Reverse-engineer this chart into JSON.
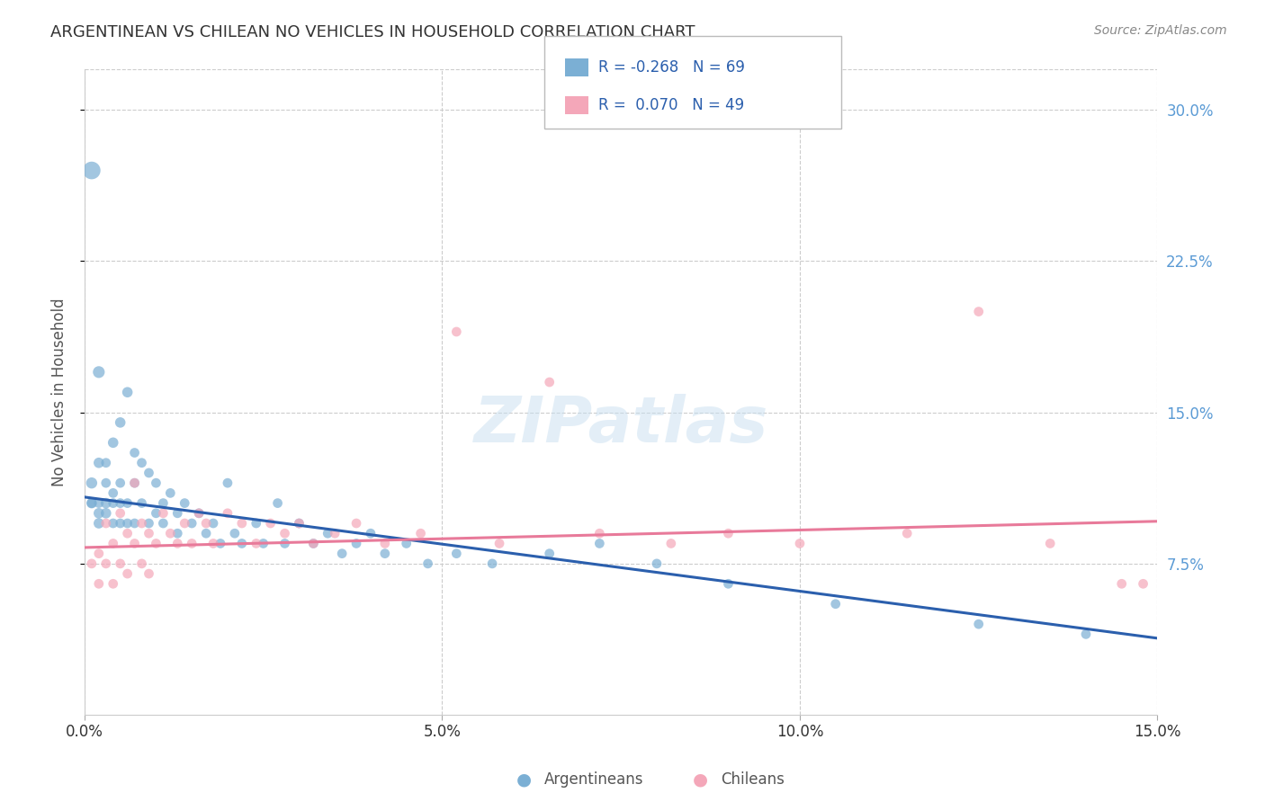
{
  "title": "ARGENTINEAN VS CHILEAN NO VEHICLES IN HOUSEHOLD CORRELATION CHART",
  "source": "Source: ZipAtlas.com",
  "ylabel": "No Vehicles in Household",
  "xlim": [
    0.0,
    0.15
  ],
  "ylim": [
    0.0,
    0.32
  ],
  "xticks": [
    0.0,
    0.05,
    0.1,
    0.15
  ],
  "xtick_labels": [
    "0.0%",
    "5.0%",
    "10.0%",
    "15.0%"
  ],
  "yticks": [
    0.075,
    0.15,
    0.225,
    0.3
  ],
  "ytick_labels": [
    "7.5%",
    "15.0%",
    "22.5%",
    "30.0%"
  ],
  "watermark": "ZIPatlas",
  "blue_color": "#7bafd4",
  "pink_color": "#f4a7b9",
  "blue_line_color": "#2b5fad",
  "pink_line_color": "#e87a9a",
  "blue_label": "Argentineans",
  "pink_label": "Chileans",
  "R_blue": "-0.268",
  "N_blue": "69",
  "R_pink": "0.070",
  "N_pink": "49",
  "blue_line": [
    0.0,
    0.108,
    0.15,
    0.038
  ],
  "pink_line": [
    0.0,
    0.083,
    0.15,
    0.096
  ],
  "argentinean_x": [
    0.001,
    0.001,
    0.001,
    0.001,
    0.002,
    0.002,
    0.002,
    0.002,
    0.002,
    0.003,
    0.003,
    0.003,
    0.003,
    0.004,
    0.004,
    0.004,
    0.004,
    0.005,
    0.005,
    0.005,
    0.005,
    0.006,
    0.006,
    0.006,
    0.007,
    0.007,
    0.007,
    0.008,
    0.008,
    0.009,
    0.009,
    0.01,
    0.01,
    0.011,
    0.011,
    0.012,
    0.013,
    0.013,
    0.014,
    0.015,
    0.016,
    0.017,
    0.018,
    0.019,
    0.02,
    0.021,
    0.022,
    0.024,
    0.025,
    0.027,
    0.028,
    0.03,
    0.032,
    0.034,
    0.036,
    0.038,
    0.04,
    0.042,
    0.045,
    0.048,
    0.052,
    0.057,
    0.065,
    0.072,
    0.08,
    0.09,
    0.105,
    0.125,
    0.14
  ],
  "argentinean_y": [
    0.27,
    0.115,
    0.105,
    0.105,
    0.17,
    0.125,
    0.105,
    0.1,
    0.095,
    0.105,
    0.1,
    0.125,
    0.115,
    0.135,
    0.11,
    0.105,
    0.095,
    0.145,
    0.115,
    0.105,
    0.095,
    0.16,
    0.105,
    0.095,
    0.13,
    0.115,
    0.095,
    0.125,
    0.105,
    0.12,
    0.095,
    0.115,
    0.1,
    0.105,
    0.095,
    0.11,
    0.1,
    0.09,
    0.105,
    0.095,
    0.1,
    0.09,
    0.095,
    0.085,
    0.115,
    0.09,
    0.085,
    0.095,
    0.085,
    0.105,
    0.085,
    0.095,
    0.085,
    0.09,
    0.08,
    0.085,
    0.09,
    0.08,
    0.085,
    0.075,
    0.08,
    0.075,
    0.08,
    0.085,
    0.075,
    0.065,
    0.055,
    0.045,
    0.04
  ],
  "argentinean_sizes": [
    200,
    80,
    70,
    60,
    90,
    70,
    60,
    70,
    70,
    70,
    70,
    60,
    60,
    70,
    60,
    60,
    60,
    70,
    60,
    60,
    60,
    70,
    60,
    60,
    60,
    60,
    60,
    60,
    60,
    60,
    60,
    60,
    60,
    60,
    60,
    60,
    60,
    60,
    60,
    60,
    60,
    60,
    60,
    60,
    60,
    60,
    60,
    60,
    60,
    60,
    60,
    60,
    60,
    60,
    60,
    60,
    60,
    60,
    60,
    60,
    60,
    60,
    60,
    60,
    60,
    60,
    60,
    60,
    60
  ],
  "chilean_x": [
    0.001,
    0.002,
    0.002,
    0.003,
    0.003,
    0.004,
    0.004,
    0.005,
    0.005,
    0.006,
    0.006,
    0.007,
    0.007,
    0.008,
    0.008,
    0.009,
    0.009,
    0.01,
    0.011,
    0.012,
    0.013,
    0.014,
    0.015,
    0.016,
    0.017,
    0.018,
    0.02,
    0.022,
    0.024,
    0.026,
    0.028,
    0.03,
    0.032,
    0.035,
    0.038,
    0.042,
    0.047,
    0.052,
    0.058,
    0.065,
    0.072,
    0.082,
    0.09,
    0.1,
    0.115,
    0.125,
    0.135,
    0.145,
    0.148
  ],
  "chilean_y": [
    0.075,
    0.08,
    0.065,
    0.095,
    0.075,
    0.085,
    0.065,
    0.1,
    0.075,
    0.09,
    0.07,
    0.115,
    0.085,
    0.095,
    0.075,
    0.09,
    0.07,
    0.085,
    0.1,
    0.09,
    0.085,
    0.095,
    0.085,
    0.1,
    0.095,
    0.085,
    0.1,
    0.095,
    0.085,
    0.095,
    0.09,
    0.095,
    0.085,
    0.09,
    0.095,
    0.085,
    0.09,
    0.19,
    0.085,
    0.165,
    0.09,
    0.085,
    0.09,
    0.085,
    0.09,
    0.2,
    0.085,
    0.065,
    0.065
  ],
  "chilean_sizes": [
    60,
    60,
    60,
    60,
    60,
    60,
    60,
    60,
    60,
    60,
    60,
    60,
    60,
    60,
    60,
    60,
    60,
    60,
    60,
    60,
    60,
    60,
    60,
    60,
    60,
    60,
    60,
    60,
    60,
    60,
    60,
    60,
    60,
    60,
    60,
    60,
    60,
    60,
    60,
    60,
    60,
    60,
    60,
    60,
    60,
    60,
    60,
    60,
    60
  ],
  "bg_color": "#ffffff",
  "grid_color": "#cccccc",
  "title_color": "#333333",
  "axis_label_color": "#555555",
  "right_ytick_color": "#5b9bd5",
  "legend_r_color": "#2b5fad"
}
